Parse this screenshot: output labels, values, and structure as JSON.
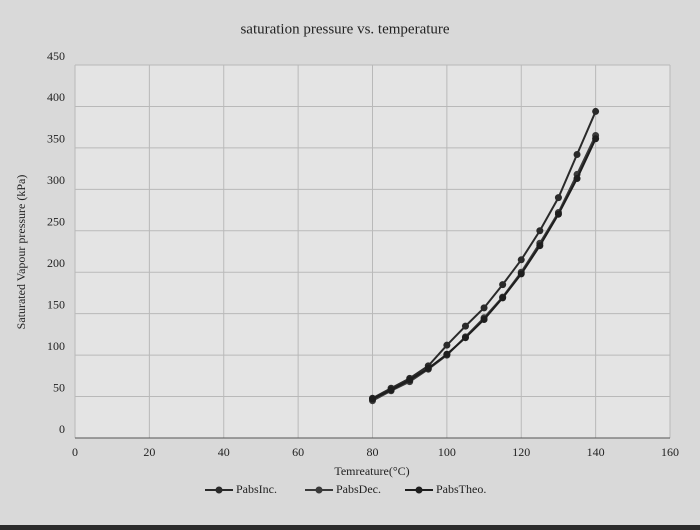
{
  "chart_data": {
    "type": "line",
    "title": "saturation pressure vs. temperature",
    "xlabel": "Temreature(°C)",
    "ylabel": "Saturated Vapour pressure (kPa)",
    "x": [
      80,
      85,
      90,
      95,
      100,
      105,
      110,
      115,
      120,
      125,
      130,
      135,
      140
    ],
    "series": [
      {
        "name": "PabsInc.",
        "color": "#2a2a2a",
        "values": [
          48,
          60,
          72,
          87,
          112,
          135,
          157,
          185,
          215,
          250,
          290,
          342,
          394
        ]
      },
      {
        "name": "PabsDec.",
        "color": "#3a3a3a",
        "values": [
          45,
          57,
          68,
          83,
          100,
          122,
          145,
          170,
          200,
          235,
          272,
          318,
          365
        ]
      },
      {
        "name": "PabsTheo.",
        "color": "#1e1e1e",
        "values": [
          47,
          58,
          70,
          84,
          101,
          121,
          143,
          169,
          198,
          232,
          270,
          313,
          361
        ]
      }
    ],
    "xlim": [
      0,
      160
    ],
    "xticks": [
      0,
      20,
      40,
      60,
      80,
      100,
      120,
      140,
      160
    ],
    "ylim": [
      0,
      450
    ],
    "yticks": [
      0,
      50,
      100,
      150,
      200,
      250,
      300,
      350,
      400,
      450
    ],
    "grid": true,
    "legend": "bottom"
  }
}
